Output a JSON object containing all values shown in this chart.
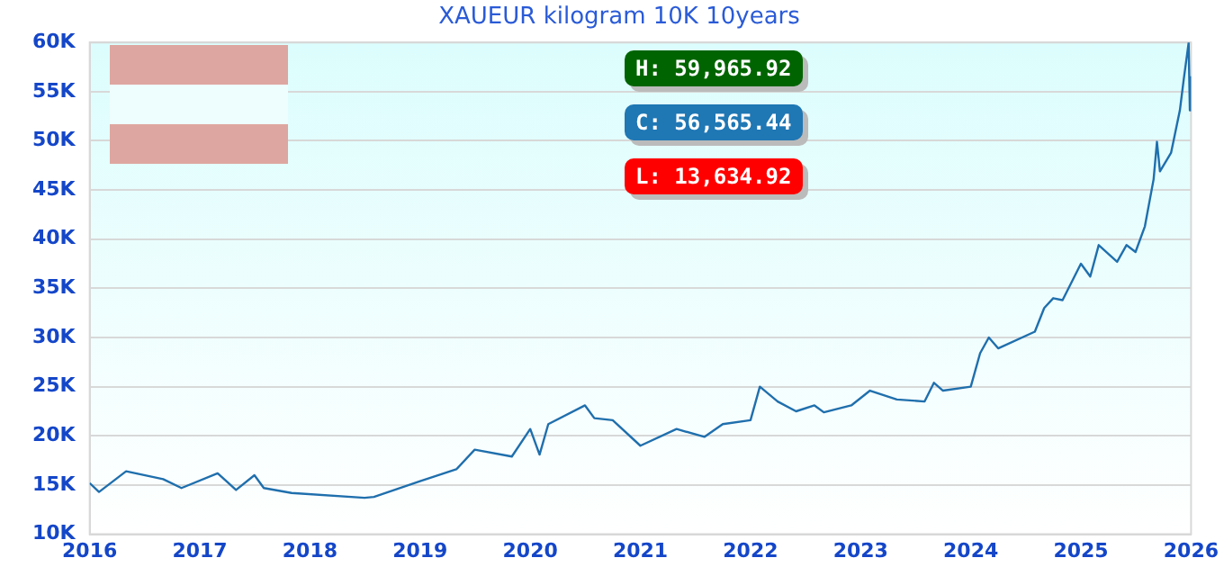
{
  "chart_data": {
    "type": "line",
    "title": "XAUEUR kilogram 10K 10years",
    "x": [
      "2016-01",
      "2016-02",
      "2016-05",
      "2016-09",
      "2016-11",
      "2017-03",
      "2017-05",
      "2017-07",
      "2017-08",
      "2017-11",
      "2018-07",
      "2018-08",
      "2019-01",
      "2019-05",
      "2019-07",
      "2019-11",
      "2020-01",
      "2020-02",
      "2020-03",
      "2020-07",
      "2020-08",
      "2020-10",
      "2021-01",
      "2021-05",
      "2021-08",
      "2021-10",
      "2022-01",
      "2022-02",
      "2022-04",
      "2022-06",
      "2022-08",
      "2022-09",
      "2022-12",
      "2023-02",
      "2023-05",
      "2023-08",
      "2023-09",
      "2023-10",
      "2024-01",
      "2024-02",
      "2024-03",
      "2024-04",
      "2024-08",
      "2024-09",
      "2024-10",
      "2024-11",
      "2025-01",
      "2025-02",
      "2025-03",
      "2025-05",
      "2025-06",
      "2025-07",
      "2025-08",
      "2025-08-30",
      "2025-09-10",
      "2025-09-20",
      "2025-10-27",
      "2025-11-25",
      "2025-12-08",
      "2025-12-24",
      "2025-12-28",
      "2025-12-31"
    ],
    "series": [
      {
        "color": "#1f6fad",
        "values": [
          15200,
          14300,
          16400,
          15600,
          14700,
          16200,
          14500,
          16000,
          14700,
          14200,
          13700,
          13800,
          15400,
          16600,
          18600,
          17900,
          20700,
          18100,
          21200,
          23100,
          21800,
          21600,
          19000,
          20700,
          19900,
          21200,
          21600,
          25000,
          23500,
          22500,
          23100,
          22400,
          23100,
          24600,
          23700,
          23500,
          25400,
          24600,
          25000,
          28400,
          30000,
          28900,
          30600,
          33000,
          34000,
          33800,
          37500,
          36200,
          39400,
          37700,
          39400,
          38700,
          41300,
          46100,
          49900,
          46900,
          48800,
          53100,
          56300,
          59965.92,
          53100,
          56565.44
        ]
      }
    ],
    "xlim": [
      "2016",
      "2026"
    ],
    "xticks": [
      {
        "value": "2016",
        "label": "2016"
      },
      {
        "value": "2017",
        "label": "2017"
      },
      {
        "value": "2018",
        "label": "2018"
      },
      {
        "value": "2019",
        "label": "2019"
      },
      {
        "value": "2020",
        "label": "2020"
      },
      {
        "value": "2021",
        "label": "2021"
      },
      {
        "value": "2022",
        "label": "2022"
      },
      {
        "value": "2023",
        "label": "2023"
      },
      {
        "value": "2024",
        "label": "2024"
      },
      {
        "value": "2025",
        "label": "2025"
      },
      {
        "value": "2026",
        "label": "2026"
      }
    ],
    "ylim": [
      10000,
      60000
    ],
    "yticks": [
      {
        "value": 10000,
        "label": "10K"
      },
      {
        "value": 15000,
        "label": "15K"
      },
      {
        "value": 20000,
        "label": "20K"
      },
      {
        "value": 25000,
        "label": "25K"
      },
      {
        "value": 30000,
        "label": "30K"
      },
      {
        "value": 35000,
        "label": "35K"
      },
      {
        "value": 40000,
        "label": "40K"
      },
      {
        "value": 45000,
        "label": "45K"
      },
      {
        "value": 50000,
        "label": "50K"
      },
      {
        "value": 55000,
        "label": "55K"
      },
      {
        "value": 60000,
        "label": "60K"
      }
    ],
    "annotations": [
      "H: 59,965.92",
      "C: 56,565.44",
      "L: 13,634.92"
    ],
    "grid": "y",
    "marker": "none",
    "line_style": "solid",
    "legend": false
  }
}
